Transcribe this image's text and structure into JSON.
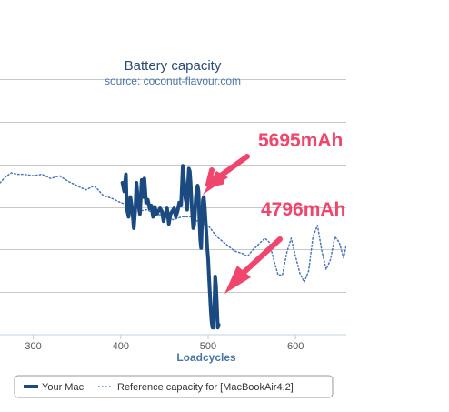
{
  "chart_data": {
    "type": "line",
    "title": "Battery capacity",
    "subtitle": "source: coconut-flavour.com",
    "xlabel": "Loadcycles",
    "ylabel": "",
    "xlim": [
      262,
      658
    ],
    "ylim": [
      4550,
      6600
    ],
    "x_ticks": [
      300,
      400,
      500,
      600
    ],
    "y_gridlines": [
      4850,
      5150,
      5450,
      5750,
      6050,
      6350,
      6650
    ],
    "grid": true,
    "legend_placement": "bottom",
    "series": [
      {
        "name": "Your Mac",
        "color": "#1a4a80",
        "style": "solid",
        "x": [
          402,
          404,
          406,
          407,
          409,
          411,
          413,
          415,
          417,
          418,
          420,
          422,
          424,
          426,
          427,
          429,
          431,
          433,
          435,
          437,
          439,
          441,
          443,
          445,
          447,
          449,
          451,
          453,
          455,
          457,
          459,
          461,
          463,
          465,
          467,
          469,
          471,
          472,
          473,
          474,
          475,
          476,
          477,
          478,
          479,
          480,
          481,
          482,
          483,
          484,
          485,
          486,
          487,
          488,
          489,
          490,
          491,
          492,
          493,
          494,
          495,
          496,
          497,
          498,
          499,
          500,
          501,
          502,
          503,
          504,
          505,
          506,
          507,
          508,
          509,
          510,
          511,
          512
        ],
        "y": [
          5620,
          5560,
          5680,
          5440,
          5380,
          5520,
          5440,
          5300,
          5460,
          5620,
          5480,
          5400,
          5640,
          5520,
          5650,
          5480,
          5500,
          5440,
          5460,
          5380,
          5450,
          5400,
          5420,
          5440,
          5420,
          5350,
          5400,
          5440,
          5330,
          5400,
          5420,
          5440,
          5380,
          5420,
          5480,
          5460,
          5740,
          5670,
          5600,
          5510,
          5480,
          5430,
          5620,
          5720,
          5700,
          5620,
          5480,
          5380,
          5300,
          5320,
          5420,
          5520,
          5580,
          5600,
          5560,
          5360,
          5220,
          5160,
          5360,
          5500,
          5520,
          5460,
          5360,
          5260,
          5160,
          5080,
          4960,
          4840,
          4720,
          4640,
          4600,
          4600,
          4740,
          4960,
          4900,
          4760,
          4600,
          4620
        ]
      },
      {
        "name": "Reference capacity for [MacBookAir4,2]",
        "color": "#4a74b8",
        "style": "dotted",
        "x": [
          262,
          268,
          275,
          282,
          290,
          300,
          310,
          320,
          330,
          340,
          350,
          360,
          370,
          380,
          390,
          400,
          410,
          420,
          430,
          440,
          450,
          460,
          470,
          480,
          490,
          500,
          510,
          520,
          530,
          540,
          545,
          550,
          555,
          560,
          565,
          570,
          575,
          580,
          585,
          590,
          595,
          600,
          605,
          610,
          615,
          620,
          625,
          630,
          635,
          640,
          645,
          650,
          655,
          658
        ],
        "y": [
          5620,
          5660,
          5690,
          5680,
          5680,
          5670,
          5680,
          5650,
          5670,
          5630,
          5600,
          5570,
          5600,
          5530,
          5510,
          5480,
          5460,
          5420,
          5430,
          5400,
          5390,
          5360,
          5380,
          5380,
          5340,
          5320,
          5240,
          5190,
          5140,
          5120,
          5100,
          5140,
          5170,
          5200,
          5230,
          5200,
          5080,
          4970,
          4970,
          5130,
          5230,
          5100,
          4980,
          4920,
          5000,
          5240,
          5320,
          5140,
          5010,
          5080,
          5240,
          5200,
          5090,
          5180
        ]
      }
    ],
    "annotations": [
      {
        "text": "5695mAh"
      },
      {
        "text": "4796mAh"
      }
    ]
  }
}
